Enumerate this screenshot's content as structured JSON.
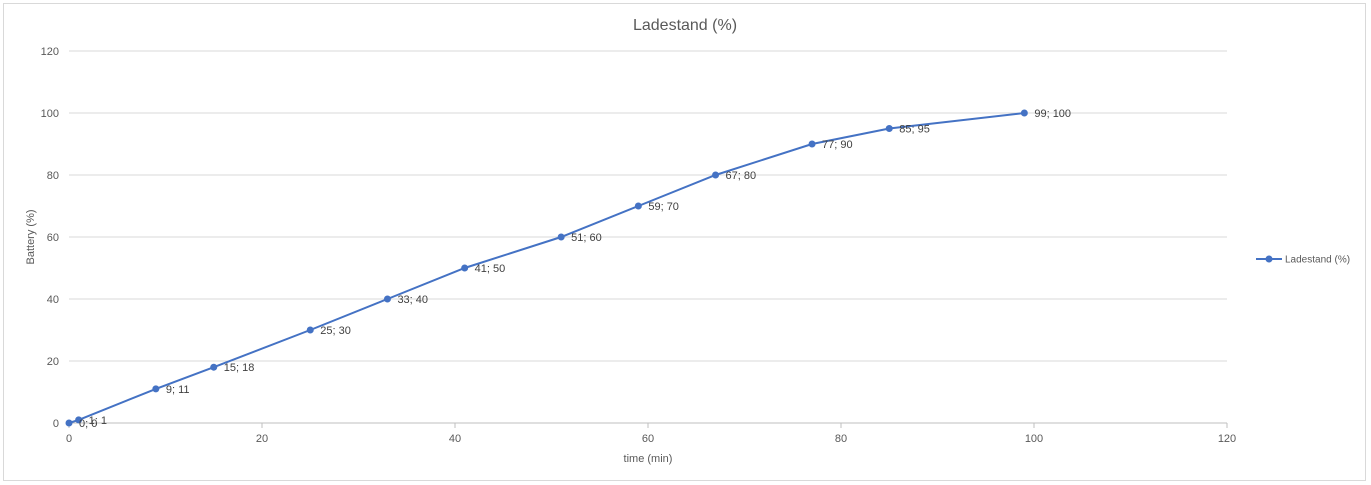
{
  "chart_data": {
    "type": "scatter",
    "title": "Ladestand (%)",
    "xlabel": "time (min)",
    "ylabel": "Battery (%)",
    "xlim": [
      0,
      120
    ],
    "ylim": [
      0,
      120
    ],
    "xticks": [
      0,
      20,
      40,
      60,
      80,
      100,
      120
    ],
    "yticks": [
      0,
      20,
      40,
      60,
      80,
      100,
      120
    ],
    "grid": "horizontal",
    "legend_position": "right",
    "series": [
      {
        "name": "Ladestand (%)",
        "color": "#4472c4",
        "points": [
          {
            "x": 0,
            "y": 0,
            "label": "0; 0"
          },
          {
            "x": 1,
            "y": 1,
            "label": "1; 1"
          },
          {
            "x": 9,
            "y": 11,
            "label": "9; 11"
          },
          {
            "x": 15,
            "y": 18,
            "label": "15; 18"
          },
          {
            "x": 25,
            "y": 30,
            "label": "25; 30"
          },
          {
            "x": 33,
            "y": 40,
            "label": "33; 40"
          },
          {
            "x": 41,
            "y": 50,
            "label": "41; 50"
          },
          {
            "x": 51,
            "y": 60,
            "label": "51; 60"
          },
          {
            "x": 59,
            "y": 70,
            "label": "59; 70"
          },
          {
            "x": 67,
            "y": 80,
            "label": "67; 80"
          },
          {
            "x": 77,
            "y": 90,
            "label": "77; 90"
          },
          {
            "x": 85,
            "y": 95,
            "label": "85; 95"
          },
          {
            "x": 99,
            "y": 100,
            "label": "99; 100"
          }
        ]
      }
    ]
  }
}
